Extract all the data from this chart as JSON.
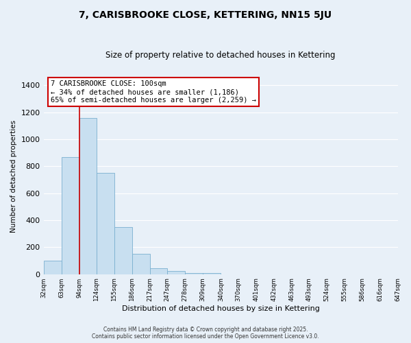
{
  "title": "7, CARISBROOKE CLOSE, KETTERING, NN15 5JU",
  "subtitle": "Size of property relative to detached houses in Kettering",
  "xlabel": "Distribution of detached houses by size in Kettering",
  "ylabel": "Number of detached properties",
  "bins": [
    32,
    63,
    94,
    124,
    155,
    186,
    217,
    247,
    278,
    309,
    340,
    370,
    401,
    432,
    463,
    493,
    524,
    555,
    586,
    616,
    647
  ],
  "counts": [
    100,
    870,
    1160,
    750,
    350,
    150,
    45,
    25,
    10,
    10,
    0,
    0,
    0,
    0,
    0,
    0,
    0,
    0,
    0,
    0
  ],
  "bar_color": "#c8dff0",
  "bar_edge_color": "#7ab0d0",
  "property_line_x": 94,
  "property_line_color": "#cc0000",
  "annotation_text": "7 CARISBROOKE CLOSE: 100sqm\n← 34% of detached houses are smaller (1,186)\n65% of semi-detached houses are larger (2,259) →",
  "annotation_box_color": "white",
  "annotation_box_edge": "#cc0000",
  "ylim": [
    0,
    1450
  ],
  "yticks": [
    0,
    200,
    400,
    600,
    800,
    1000,
    1200,
    1400
  ],
  "background_color": "#e8f0f8",
  "grid_color": "#ffffff",
  "footer_line1": "Contains HM Land Registry data © Crown copyright and database right 2025.",
  "footer_line2": "Contains public sector information licensed under the Open Government Licence v3.0.",
  "tick_labels": [
    "32sqm",
    "63sqm",
    "94sqm",
    "124sqm",
    "155sqm",
    "186sqm",
    "217sqm",
    "247sqm",
    "278sqm",
    "309sqm",
    "340sqm",
    "370sqm",
    "401sqm",
    "432sqm",
    "463sqm",
    "493sqm",
    "524sqm",
    "555sqm",
    "586sqm",
    "616sqm",
    "647sqm"
  ]
}
